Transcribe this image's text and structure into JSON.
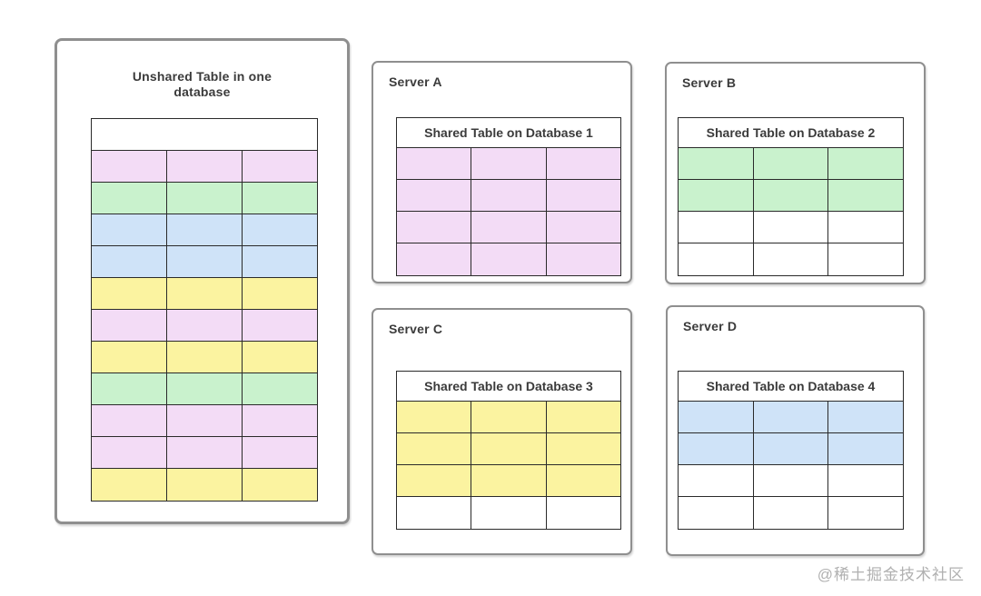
{
  "watermark": "@稀土掘金技术社区",
  "colors": {
    "violet": "#f3dcf6",
    "green": "#c9f2cd",
    "blue": "#cfe3f8",
    "yellow": "#fbf3a0",
    "white": "#ffffff"
  },
  "unshared": {
    "title": "Unshared Table in one database",
    "table": {
      "title": "",
      "columns": 3,
      "rows": [
        "violet",
        "green",
        "blue",
        "blue",
        "yellow",
        "violet",
        "yellow",
        "green",
        "violet",
        "violet",
        "yellow"
      ]
    }
  },
  "servers": [
    {
      "name": "Server A",
      "table": {
        "title": "Shared Table on Database 1",
        "columns": 3,
        "rows": [
          "violet",
          "violet",
          "violet",
          "violet"
        ]
      }
    },
    {
      "name": "Server B",
      "table": {
        "title": "Shared Table on Database 2",
        "columns": 3,
        "rows": [
          "green",
          "green",
          "white",
          "white"
        ]
      }
    },
    {
      "name": "Server C",
      "table": {
        "title": "Shared Table on Database 3",
        "columns": 3,
        "rows": [
          "yellow",
          "yellow",
          "yellow",
          "white"
        ]
      }
    },
    {
      "name": "Server D",
      "table": {
        "title": "Shared Table on Database 4",
        "columns": 3,
        "rows": [
          "blue",
          "blue",
          "white",
          "white"
        ]
      }
    }
  ]
}
